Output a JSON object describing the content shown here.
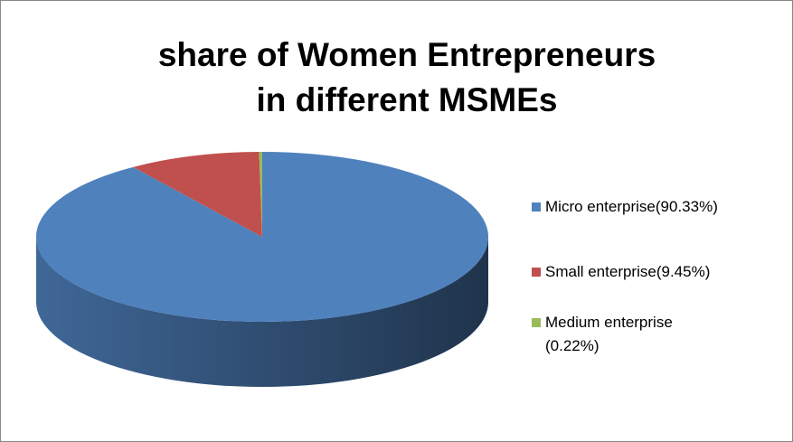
{
  "chart_data": {
    "type": "pie",
    "title": "share of Women Entrepreneurs in different MSMEs",
    "categories": [
      "Micro enterprise(90.33%)",
      "Small enterprise(9.45%)",
      "Medium enterprise\n(0.22%)"
    ],
    "values": [
      90.33,
      9.45,
      0.22
    ],
    "colors": [
      "#4f81bd",
      "#c0504d",
      "#9bbb59"
    ],
    "legend": "right"
  }
}
